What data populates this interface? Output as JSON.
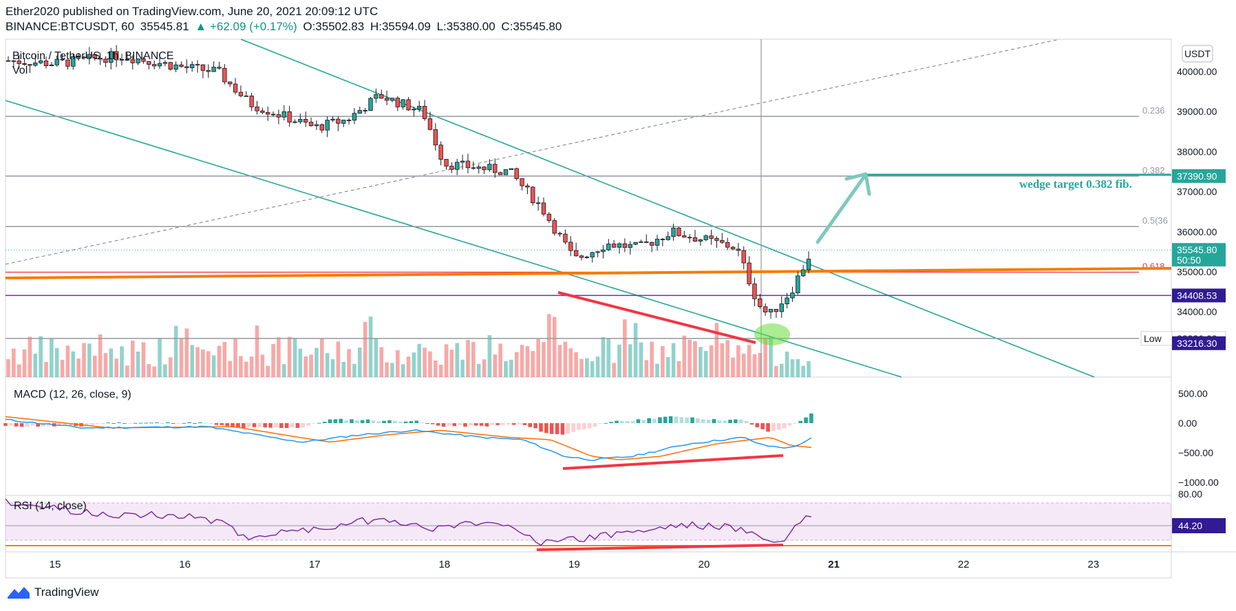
{
  "header": {
    "published": "Ether2020 published on TradingView.com, June 20, 2021 20:09:12 UTC",
    "symbol": "BINANCE:BTCUSDT, 60",
    "last": "35545.81",
    "change": "▲ +62.09 (+0.17%)",
    "open": "O:35502.83",
    "high": "H:35594.09",
    "low": "L:35380.00",
    "close": "C:35545.80"
  },
  "legend": {
    "title": "Bitcoin / TetherUS, 1h, BINANCE",
    "vol": "Vol"
  },
  "currency": "USDT",
  "annotation": "wedge target 0.382 fib.",
  "price_axis": {
    "ticks": [
      "40000.00",
      "39000.00",
      "38000.00",
      "37000.00",
      "36000.00",
      "35000.00",
      "34000.00"
    ],
    "tags": [
      {
        "text": "37390.90",
        "color": "#26a69a",
        "price": 37390.9
      },
      {
        "text": "35545.80",
        "sub": "50:50",
        "color": "#26a69a",
        "price": 35545.8
      },
      {
        "text": "34408.53",
        "color": "#311b92",
        "price": 34408.53
      },
      {
        "text": "33336.00",
        "color": "#ffffff",
        "price": 33336,
        "prefix": "Low"
      },
      {
        "text": "33216.30",
        "color": "#311b92",
        "price": 33216.3
      }
    ]
  },
  "fib_levels": [
    {
      "label": "0.236",
      "price": 38880
    },
    {
      "label": "0.382",
      "price": 37390
    },
    {
      "label": "0.5(36",
      "price": 36130
    },
    {
      "label": "0.618",
      "price": 34990
    }
  ],
  "macd": {
    "title": "MACD (12, 26, close, 9)",
    "ticks": [
      "500.00",
      "0.00",
      "−500.00",
      "−1000.00"
    ]
  },
  "rsi": {
    "title": "RSI (14, close)",
    "top_tick": "80.00",
    "value": "44.20"
  },
  "time_axis": [
    "15",
    "16",
    "17",
    "18",
    "19",
    "20",
    "21",
    "22",
    "23"
  ],
  "brand": "TradingView",
  "chart_data": {
    "type": "candlestick",
    "symbol": "BTCUSDT",
    "interval": "1h",
    "x_range": [
      "Jun 14",
      "Jun 23"
    ],
    "y_range": [
      33000,
      40800
    ],
    "close_path": [
      {
        "x": "Jun 14 12:00",
        "y": 40300
      },
      {
        "x": "Jun 15 00:00",
        "y": 40200
      },
      {
        "x": "Jun 15 12:00",
        "y": 40400
      },
      {
        "x": "Jun 16 00:00",
        "y": 40100
      },
      {
        "x": "Jun 16 06:00",
        "y": 40000
      },
      {
        "x": "Jun 16 12:00",
        "y": 39200
      },
      {
        "x": "Jun 17 00:00",
        "y": 38600
      },
      {
        "x": "Jun 17 06:00",
        "y": 38800
      },
      {
        "x": "Jun 17 12:00",
        "y": 39400
      },
      {
        "x": "Jun 17 20:00",
        "y": 39000
      },
      {
        "x": "Jun 18 00:00",
        "y": 37700
      },
      {
        "x": "Jun 18 12:00",
        "y": 37500
      },
      {
        "x": "Jun 18 18:00",
        "y": 36600
      },
      {
        "x": "Jun 19 00:00",
        "y": 35300
      },
      {
        "x": "Jun 19 06:00",
        "y": 35700
      },
      {
        "x": "Jun 19 12:00",
        "y": 35600
      },
      {
        "x": "Jun 19 18:00",
        "y": 36000
      },
      {
        "x": "Jun 20 00:00",
        "y": 35800
      },
      {
        "x": "Jun 20 06:00",
        "y": 35600
      },
      {
        "x": "Jun 20 10:00",
        "y": 34200
      },
      {
        "x": "Jun 20 12:00",
        "y": 33900
      },
      {
        "x": "Jun 20 16:00",
        "y": 34500
      },
      {
        "x": "Jun 20 20:00",
        "y": 35545.8
      }
    ]
  }
}
